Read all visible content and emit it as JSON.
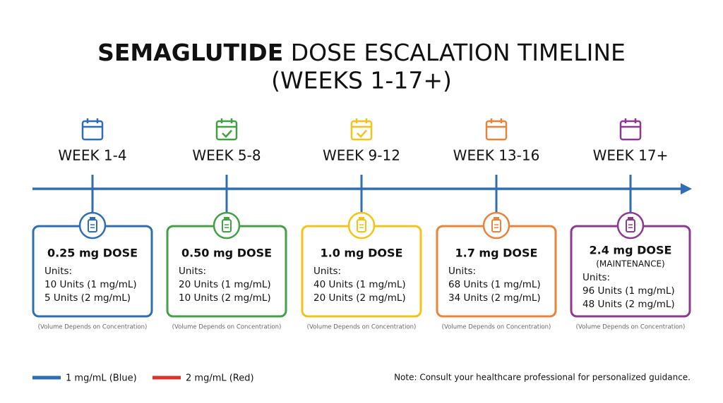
{
  "title": {
    "bold": "SEMAGLUTIDE",
    "rest": "DOSE ESCALATION TIMELINE",
    "line2": "(WEEKS 1-17+)"
  },
  "stages": [
    {
      "week": "WEEK 1-4",
      "color": "#2f6db5",
      "icon": "calendar",
      "dose": "0.25 mg DOSE",
      "units_label": "Units:",
      "lines": [
        "10 Units (1 mg/mL)",
        "5 Units (2 mg/mL)"
      ],
      "footnote": "(Volume Depends on Concentration)"
    },
    {
      "week": "WEEK 5-8",
      "color": "#43a047",
      "icon": "calendar-check",
      "dose": "0.50 mg DOSE",
      "units_label": "Units:",
      "lines": [
        "20 Units (1 mg/mL)",
        "10 Units (2 mg/mL)"
      ],
      "footnote": "(Volume Depends on Concentration)"
    },
    {
      "week": "WEEK 9-12",
      "color": "#f0c419",
      "icon": "calendar-check",
      "dose": "1.0 mg DOSE",
      "units_label": "Units:",
      "lines": [
        "40 Units (1 mg/mL)",
        "20 Units (2 mg/mL)"
      ],
      "footnote": "(Volume Depends on Concentration)"
    },
    {
      "week": "WEEK 13-16",
      "color": "#e8843a",
      "icon": "calendar",
      "dose": "1.7 mg DOSE",
      "units_label": "Units:",
      "lines": [
        "68 Units (1 mg/mL)",
        "34 Units (2 mg/mL)"
      ],
      "footnote": "(Volume Depends on Concentration)"
    },
    {
      "week": "WEEK 17+",
      "color": "#8b3a8f",
      "icon": "calendar",
      "dose": "2.4 mg DOSE",
      "note": "(MAINTENANCE)",
      "units_label": "Units:",
      "lines": [
        "96 Units (1 mg/mL)",
        "48 Units (2 mg/mL)"
      ],
      "footnote": "(Volume Depends on Concentration)"
    }
  ],
  "legend": [
    {
      "label": "1 mg/mL (Blue)",
      "color": "#2f6db5"
    },
    {
      "label": "2 mg/mL (Red)",
      "color": "#d9342b"
    }
  ],
  "note": "Note: Consult your healthcare professional for personalized guidance."
}
